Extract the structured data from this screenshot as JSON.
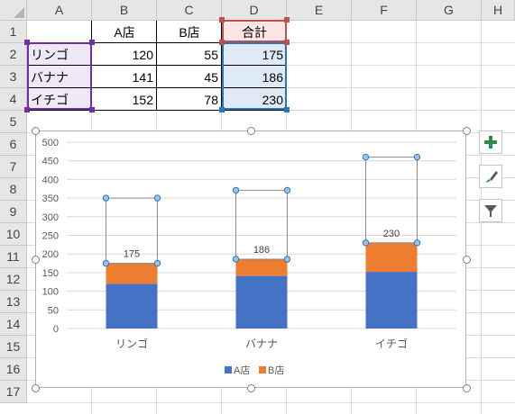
{
  "columns": [
    "A",
    "B",
    "C",
    "D",
    "E",
    "F",
    "G",
    "H"
  ],
  "rows": [
    "1",
    "2",
    "3",
    "4",
    "5",
    "6",
    "7",
    "8",
    "9",
    "10",
    "11",
    "12",
    "13",
    "14",
    "15",
    "16",
    "17"
  ],
  "table": {
    "headers": [
      "A店",
      "B店",
      "合計"
    ],
    "rows": [
      {
        "name": "リンゴ",
        "a": "120",
        "b": "55",
        "total": "175"
      },
      {
        "name": "バナナ",
        "a": "141",
        "b": "45",
        "total": "186"
      },
      {
        "name": "イチゴ",
        "a": "152",
        "b": "78",
        "total": "230"
      }
    ]
  },
  "colors": {
    "series_a": "#4472c4",
    "series_b": "#ed7d31",
    "grid": "#d9d9d9",
    "purple_range": "#7030a0",
    "blue_range": "#2e75b6",
    "red_range": "#c0504d"
  },
  "side_buttons": {
    "add": "plus-icon",
    "style": "brush-icon",
    "filter": "filter-icon"
  },
  "chart_data": {
    "type": "bar",
    "stacked": true,
    "categories": [
      "リンゴ",
      "バナナ",
      "イチゴ"
    ],
    "series": [
      {
        "name": "A店",
        "values": [
          120,
          141,
          152
        ],
        "color": "#4472c4"
      },
      {
        "name": "B店",
        "values": [
          55,
          45,
          78
        ],
        "color": "#ed7d31"
      }
    ],
    "total_labels": [
      "175",
      "186",
      "230"
    ],
    "selected_overlay_values": [
      350,
      371,
      460
    ],
    "ylim": [
      0,
      500
    ],
    "yticks": [
      "0",
      "50",
      "100",
      "150",
      "200",
      "250",
      "300",
      "350",
      "400",
      "450",
      "500"
    ],
    "grid": true,
    "legend_position": "bottom"
  }
}
